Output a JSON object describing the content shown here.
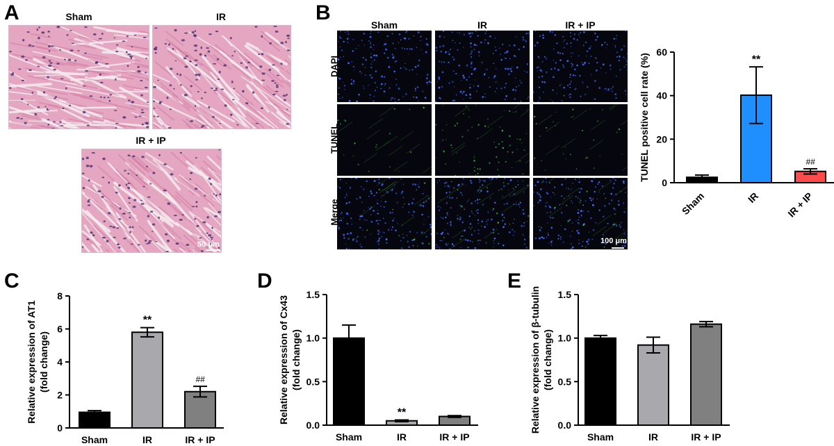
{
  "panels": {
    "A": {
      "letter": "A",
      "labels": [
        "Sham",
        "IR",
        "IR + IP"
      ],
      "scale": "50 μm",
      "colors": {
        "background": "#e4a6c0",
        "fiber": "#c86a95",
        "nucleus": "#4a3070",
        "gap": "#f5ecf0"
      }
    },
    "B": {
      "letter": "B",
      "columns": [
        "Sham",
        "IR",
        "IR + IP"
      ],
      "rows": [
        "DAPI",
        "TUNEL",
        "Merge"
      ],
      "scale": "100 μm",
      "colors": {
        "dapi": "#3d6cff",
        "tunel": "#3fc43f",
        "background": "#05060e"
      }
    },
    "C": {
      "letter": "C"
    },
    "D": {
      "letter": "D"
    },
    "E": {
      "letter": "E"
    }
  },
  "chart_data": [
    {
      "id": "B-chart",
      "type": "bar",
      "categories": [
        "Sham",
        "IR",
        "IR + IP"
      ],
      "values": [
        2.5,
        40.2,
        5.2
      ],
      "errors": [
        1.0,
        13.0,
        1.2
      ],
      "annotations": [
        "",
        "**",
        "##"
      ],
      "colors": [
        "#000000",
        "#1f8fff",
        "#ff4b4b"
      ],
      "ylabel": "TUNEL positive cell rate (%)",
      "ylim": [
        0,
        60
      ],
      "yticks": [
        0,
        20,
        40,
        60
      ],
      "tick_rotation": -45
    },
    {
      "id": "C-chart",
      "type": "bar",
      "categories": [
        "Sham",
        "IR",
        "IR + IP"
      ],
      "values": [
        0.95,
        5.8,
        2.2
      ],
      "errors": [
        0.1,
        0.28,
        0.32
      ],
      "annotations": [
        "",
        "**",
        "##"
      ],
      "colors": [
        "#000000",
        "#a9a9ad",
        "#808080"
      ],
      "ylabel_lines": [
        "Relative expression of AT1",
        "(fold change)"
      ],
      "ylim": [
        0,
        8
      ],
      "yticks": [
        0,
        2,
        4,
        6,
        8
      ]
    },
    {
      "id": "D-chart",
      "type": "bar",
      "categories": [
        "Sham",
        "IR",
        "IR + IP"
      ],
      "values": [
        1.0,
        0.05,
        0.1
      ],
      "errors": [
        0.15,
        0.01,
        0.01
      ],
      "annotations": [
        "",
        "**",
        ""
      ],
      "colors": [
        "#000000",
        "#a9a9ad",
        "#808080"
      ],
      "ylabel_lines": [
        "Relative expression of Cx43",
        "(fold change)"
      ],
      "ylim": [
        0,
        1.5
      ],
      "yticks": [
        0.0,
        0.5,
        1.0,
        1.5
      ],
      "ytick_labels": [
        "0.0",
        "0.5",
        "1.0",
        "1.5"
      ]
    },
    {
      "id": "E-chart",
      "type": "bar",
      "categories": [
        "Sham",
        "IR",
        "IR + IP"
      ],
      "values": [
        1.0,
        0.92,
        1.16
      ],
      "errors": [
        0.03,
        0.09,
        0.03
      ],
      "annotations": [
        "",
        "",
        ""
      ],
      "colors": [
        "#000000",
        "#a9a9ad",
        "#808080"
      ],
      "ylabel_lines": [
        "Relative expression of β-tubulin",
        "(fold change)"
      ],
      "ylim": [
        0,
        1.5
      ],
      "yticks": [
        0.0,
        0.5,
        1.0,
        1.5
      ],
      "ytick_labels": [
        "0.0",
        "0.5",
        "1.0",
        "1.5"
      ]
    }
  ]
}
